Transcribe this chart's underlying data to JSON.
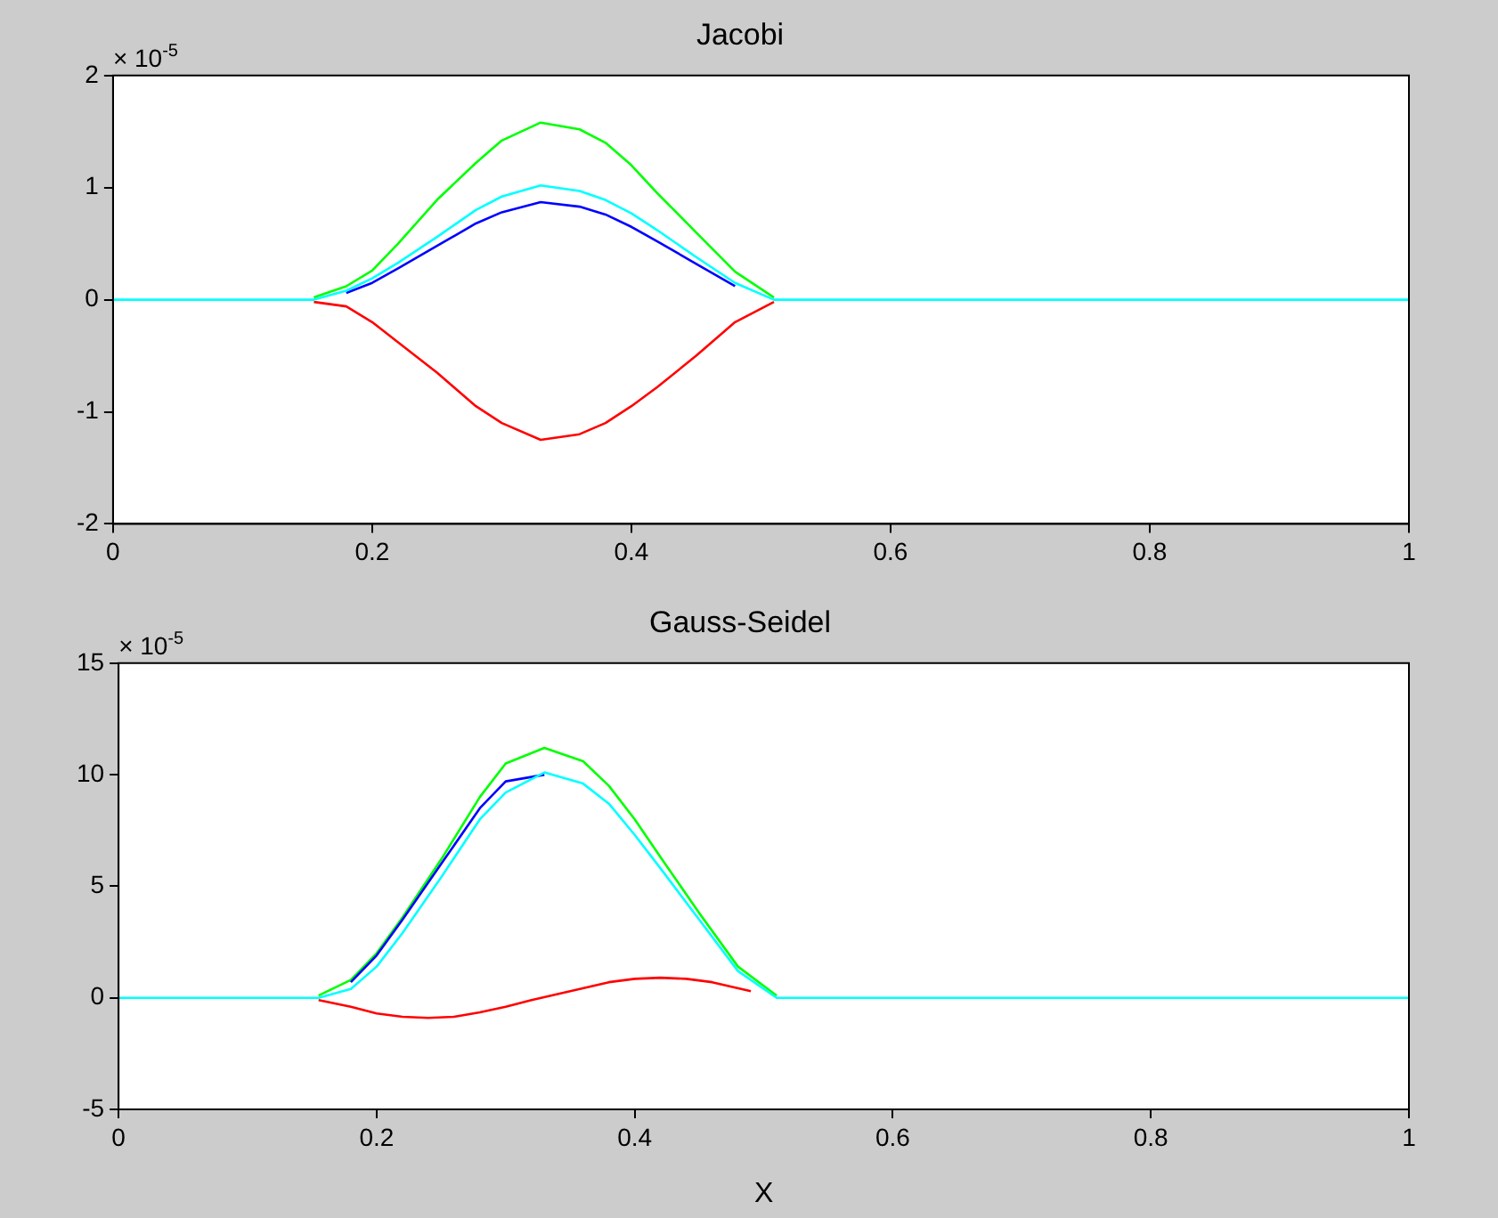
{
  "chart_data": [
    {
      "type": "line",
      "title": "Jacobi",
      "annotations": [
        "× 10$^{-5}$"
      ],
      "xlim": [
        0,
        1
      ],
      "xticks": [
        0,
        0.2,
        0.4,
        0.6,
        0.8,
        1
      ],
      "ylim": [
        -2,
        2
      ],
      "yticks": [
        -2,
        -1,
        0,
        1,
        2
      ],
      "grid": false,
      "legend": false,
      "marker": "none",
      "line_style": "solid",
      "series": [
        {
          "color": "#ff0000",
          "x": [
            0.155,
            0.18,
            0.2,
            0.22,
            0.25,
            0.28,
            0.3,
            0.33,
            0.36,
            0.38,
            0.4,
            0.42,
            0.45,
            0.48,
            0.51
          ],
          "values": [
            -0.02,
            -0.06,
            -0.2,
            -0.38,
            -0.65,
            -0.95,
            -1.1,
            -1.25,
            -1.2,
            -1.1,
            -0.95,
            -0.78,
            -0.5,
            -0.2,
            -0.02
          ]
        },
        {
          "color": "#00ff00",
          "x": [
            0.155,
            0.18,
            0.2,
            0.22,
            0.25,
            0.28,
            0.3,
            0.33,
            0.36,
            0.38,
            0.4,
            0.42,
            0.45,
            0.48,
            0.51
          ],
          "values": [
            0.02,
            0.12,
            0.26,
            0.5,
            0.89,
            1.22,
            1.42,
            1.58,
            1.52,
            1.4,
            1.2,
            0.95,
            0.6,
            0.25,
            0.02
          ]
        },
        {
          "color": "#0000ff",
          "x": [
            0.18,
            0.2,
            0.22,
            0.25,
            0.28,
            0.3,
            0.33,
            0.36,
            0.38,
            0.4,
            0.42,
            0.45,
            0.48
          ],
          "values": [
            0.06,
            0.15,
            0.28,
            0.48,
            0.68,
            0.78,
            0.87,
            0.83,
            0.76,
            0.65,
            0.52,
            0.32,
            0.12
          ]
        },
        {
          "color": "#00ffff",
          "x": [
            0,
            0.155,
            0.18,
            0.2,
            0.22,
            0.25,
            0.28,
            0.3,
            0.33,
            0.36,
            0.38,
            0.4,
            0.42,
            0.45,
            0.48,
            0.51,
            1
          ],
          "values": [
            0,
            0,
            0.08,
            0.19,
            0.33,
            0.56,
            0.8,
            0.92,
            1.02,
            0.97,
            0.89,
            0.77,
            0.62,
            0.38,
            0.15,
            0,
            0
          ]
        }
      ]
    },
    {
      "type": "line",
      "title": "Gauss-Seidel",
      "xlabel": "X",
      "annotations": [
        "× 10$^{-5}$"
      ],
      "xlim": [
        0,
        1
      ],
      "xticks": [
        0,
        0.2,
        0.4,
        0.6,
        0.8,
        1
      ],
      "ylim": [
        -5,
        15
      ],
      "yticks": [
        -5,
        0,
        5,
        10,
        15
      ],
      "grid": false,
      "legend": false,
      "marker": "none",
      "line_style": "solid",
      "series": [
        {
          "color": "#ff0000",
          "x": [
            0.155,
            0.18,
            0.2,
            0.22,
            0.24,
            0.26,
            0.28,
            0.3,
            0.32,
            0.35,
            0.38,
            0.4,
            0.42,
            0.44,
            0.46,
            0.49
          ],
          "values": [
            -0.1,
            -0.4,
            -0.7,
            -0.85,
            -0.9,
            -0.85,
            -0.65,
            -0.4,
            -0.1,
            0.3,
            0.7,
            0.85,
            0.9,
            0.85,
            0.7,
            0.3
          ]
        },
        {
          "color": "#00ff00",
          "x": [
            0.155,
            0.18,
            0.2,
            0.22,
            0.25,
            0.28,
            0.3,
            0.33,
            0.36,
            0.38,
            0.4,
            0.42,
            0.45,
            0.48,
            0.51
          ],
          "values": [
            0.1,
            0.8,
            2,
            3.6,
            6.2,
            9,
            10.5,
            11.2,
            10.6,
            9.5,
            8,
            6.3,
            3.8,
            1.4,
            0.1
          ]
        },
        {
          "color": "#0000ff",
          "x": [
            0.18,
            0.2,
            0.22,
            0.25,
            0.28,
            0.3,
            0.33
          ],
          "values": [
            0.7,
            1.9,
            3.5,
            6,
            8.5,
            9.7,
            10
          ]
        },
        {
          "color": "#00ffff",
          "x": [
            0,
            0.155,
            0.18,
            0.2,
            0.22,
            0.25,
            0.28,
            0.3,
            0.33,
            0.36,
            0.38,
            0.4,
            0.42,
            0.45,
            0.48,
            0.51,
            1
          ],
          "values": [
            0,
            0,
            0.4,
            1.4,
            2.9,
            5.4,
            8,
            9.2,
            10.1,
            9.6,
            8.7,
            7.3,
            5.8,
            3.5,
            1.2,
            0,
            0
          ]
        }
      ]
    }
  ]
}
